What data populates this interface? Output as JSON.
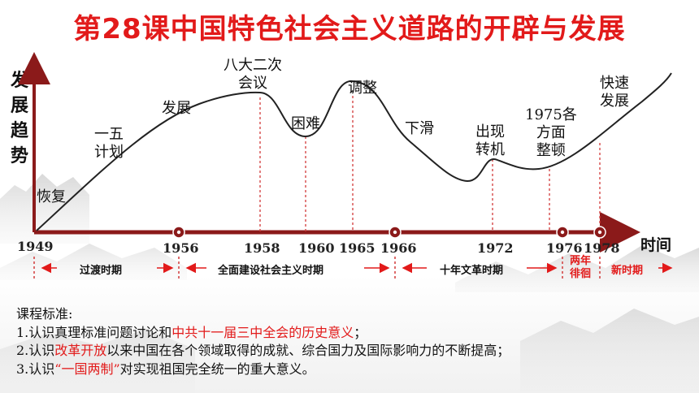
{
  "title": "第28课中国特色社会主义道路的开辟与发展",
  "y_axis_label": "发展趋势",
  "x_axis_label": "时间",
  "curve_labels": [
    {
      "id": "huifu",
      "text": "恢复"
    },
    {
      "id": "yiwu",
      "line1": "一五",
      "line2": "计划"
    },
    {
      "id": "fazhan",
      "text": "发展"
    },
    {
      "id": "bada",
      "line1": "八大二次",
      "line2": "会议"
    },
    {
      "id": "kunnan",
      "text": "困难"
    },
    {
      "id": "tiaozheng",
      "text": "调整"
    },
    {
      "id": "xiahua",
      "text": "下滑"
    },
    {
      "id": "chuxian",
      "line1": "出现",
      "line2": "转机"
    },
    {
      "id": "gefangmian",
      "line1": "1975各",
      "line2": "方面",
      "line3": "整顿"
    },
    {
      "id": "kuaisu",
      "line1": "快速",
      "line2": "发展"
    }
  ],
  "years": [
    "1949",
    "1956",
    "1958",
    "1960",
    "1965",
    "1966",
    "1972",
    "1976",
    "1978"
  ],
  "periods": {
    "guodu": "过渡时期",
    "quanmian": "全面建设社会主义时期",
    "wenge": "十年文革时期",
    "liangnian_1": "两年",
    "liangnian_2": "徘徊",
    "xinshiqi": "新时期"
  },
  "standards": {
    "heading": "课程标准:",
    "line1_a": "1.认识真理标准问题讨论和",
    "line1_b": "中共十一届三中全会的历史意义",
    "line1_c": "；",
    "line2_a": "2.认识",
    "line2_b": "改革开放",
    "line2_c": "以来中国在各个领域取得的成就、综合国力及国际影响力的不断提高；",
    "line3_a": "3.认识",
    "line3_b": "“一国两制”",
    "line3_c": "对实现祖国完全统一的重大意义。"
  },
  "colors": {
    "accent_red": "#e21a1a",
    "axis_dark_red": "#8b1a1a",
    "curve": "#222222"
  }
}
